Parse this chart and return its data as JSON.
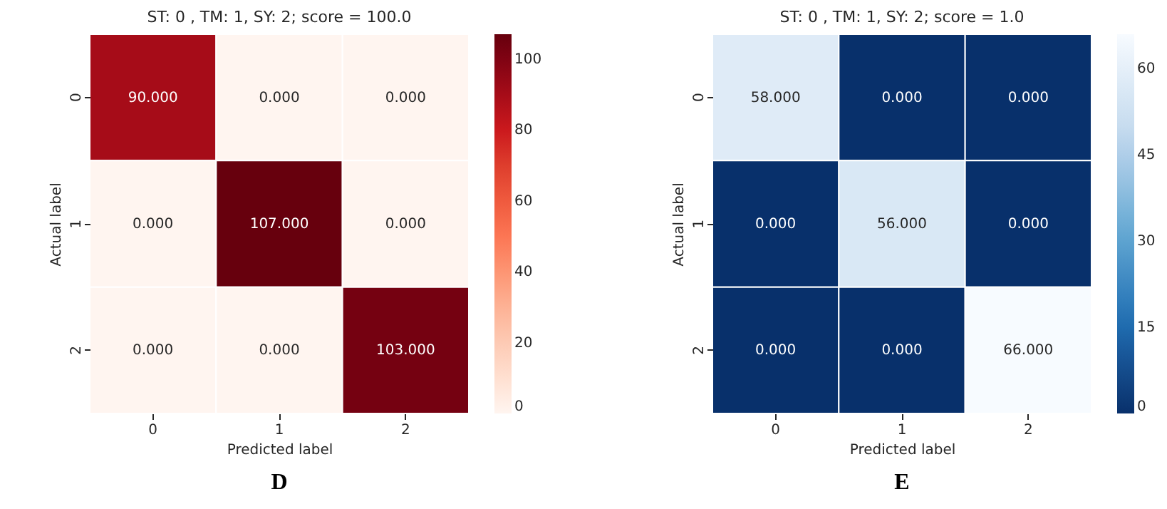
{
  "chart_data": [
    {
      "type": "heatmap",
      "title": "ST: 0 , TM: 1, SY: 2; score = 100.0",
      "xlabel": "Predicted label",
      "ylabel": "Actual label",
      "annotations": [
        "D"
      ],
      "categories": [
        "0",
        "1",
        "2"
      ],
      "y_categories": [
        "0",
        "1",
        "2"
      ],
      "cells": [
        [
          90,
          0,
          0
        ],
        [
          0,
          107,
          0
        ],
        [
          0,
          0,
          103
        ]
      ],
      "cell_labels": [
        [
          "90.000",
          "0.000",
          "0.000"
        ],
        [
          "0.000",
          "107.000",
          "0.000"
        ],
        [
          "0.000",
          "0.000",
          "103.000"
        ]
      ],
      "clim": [
        0,
        107
      ],
      "cticks": [
        0,
        20,
        40,
        60,
        80,
        100
      ],
      "colors": [
        "#fff5f0",
        "#fcbba1",
        "#fb6a4a",
        "#cb181d",
        "#67000d"
      ]
    },
    {
      "type": "heatmap",
      "title": "ST: 0 , TM: 1, SY: 2; score = 1.0",
      "xlabel": "Predicted label",
      "ylabel": "Actual label",
      "annotations": [
        "E"
      ],
      "categories": [
        "0",
        "1",
        "2"
      ],
      "y_categories": [
        "0",
        "1",
        "2"
      ],
      "cells": [
        [
          58,
          0,
          0
        ],
        [
          0,
          56,
          0
        ],
        [
          0,
          0,
          66
        ]
      ],
      "cell_labels": [
        [
          "58.000",
          "0.000",
          "0.000"
        ],
        [
          "0.000",
          "56.000",
          "0.000"
        ],
        [
          "0.000",
          "0.000",
          "66.000"
        ]
      ],
      "clim": [
        0,
        66
      ],
      "cticks": [
        0,
        15,
        30,
        45,
        60
      ],
      "colors": [
        "#08306b",
        "#2171b5",
        "#6baed6",
        "#c6dbef",
        "#f7fbff"
      ]
    }
  ]
}
